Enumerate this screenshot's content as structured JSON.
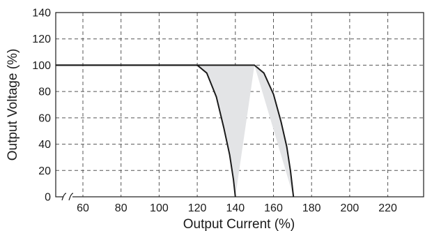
{
  "chart_data": {
    "type": "area",
    "xlabel": "Output Current (%)",
    "ylabel": "Output Voltage (%)",
    "xlim": [
      50,
      235
    ],
    "ylim": [
      0,
      140
    ],
    "x_ticks": [
      60,
      80,
      100,
      120,
      140,
      160,
      180,
      200,
      220
    ],
    "y_ticks": [
      0,
      20,
      40,
      60,
      80,
      100,
      120,
      140
    ],
    "axis_break": "x",
    "grid": true,
    "grid_style": "dashed",
    "colors": {
      "line": "#1a1a1a",
      "band_fill": "#e3e4e6",
      "grid": "#555555"
    },
    "series": [
      {
        "x": [
          50,
          120,
          125,
          130,
          134,
          137,
          139,
          140
        ],
        "y": [
          100,
          100,
          94,
          76,
          52,
          32,
          13,
          0
        ]
      },
      {
        "x": [
          50,
          150,
          155,
          160,
          164,
          167,
          169,
          170.5
        ],
        "y": [
          100,
          100,
          94,
          78,
          57,
          38,
          19,
          0
        ]
      }
    ]
  }
}
